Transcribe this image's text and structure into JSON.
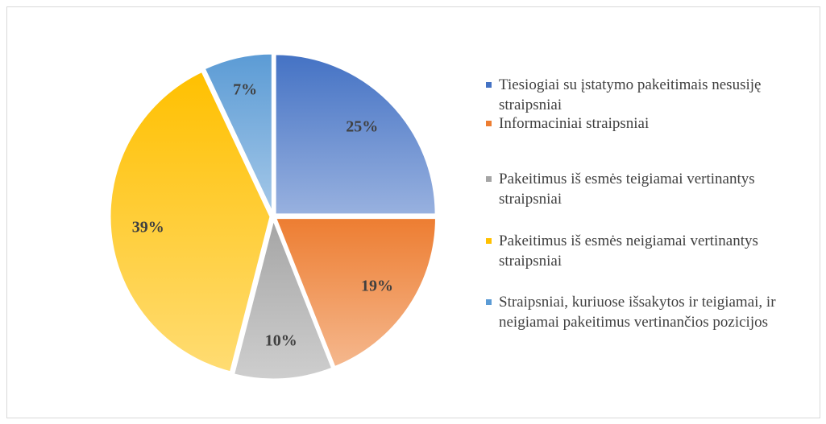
{
  "chart_data": {
    "type": "pie",
    "categories": [
      "Tiesiogiai su įstatymo pakeitimais nesusiję straipsniai",
      "Informaciniai straipsniai",
      "Pakeitimus iš esmės teigiamai vertinantys straipsniai",
      "Pakeitimus iš esmės neigiamai vertinantys straipsniai",
      "Straipsniai, kuriuose išsakytos ir teigiamai, ir neigiamai pakeitimus vertinančios pozicijos"
    ],
    "values": [
      25,
      19,
      10,
      39,
      7
    ],
    "value_labels": [
      "25%",
      "19%",
      "10%",
      "39%",
      "7%"
    ],
    "colors": [
      "#4472c4",
      "#ed7d31",
      "#a5a5a5",
      "#ffc000",
      "#5b9bd5"
    ],
    "legend": "right"
  }
}
